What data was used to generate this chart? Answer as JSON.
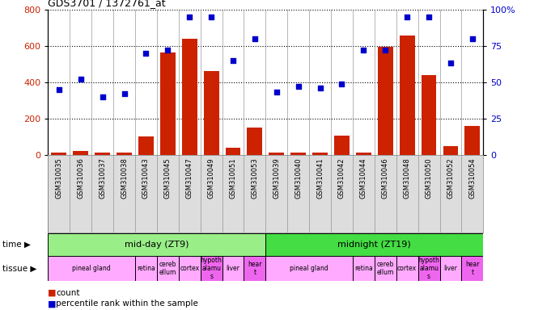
{
  "title": "GDS3701 / 1372761_at",
  "samples": [
    "GSM310035",
    "GSM310036",
    "GSM310037",
    "GSM310038",
    "GSM310043",
    "GSM310045",
    "GSM310047",
    "GSM310049",
    "GSM310051",
    "GSM310053",
    "GSM310039",
    "GSM310040",
    "GSM310041",
    "GSM310042",
    "GSM310044",
    "GSM310046",
    "GSM310048",
    "GSM310050",
    "GSM310052",
    "GSM310054"
  ],
  "counts": [
    15,
    20,
    12,
    14,
    100,
    565,
    640,
    460,
    40,
    150,
    12,
    14,
    14,
    108,
    12,
    595,
    655,
    440,
    50,
    160
  ],
  "percentiles": [
    45,
    52,
    40,
    42,
    70,
    72,
    95,
    95,
    65,
    80,
    43,
    47,
    46,
    49,
    72,
    72,
    95,
    95,
    63,
    80
  ],
  "ylim_left": [
    0,
    800
  ],
  "ylim_right": [
    0,
    100
  ],
  "yticks_left": [
    0,
    200,
    400,
    600,
    800
  ],
  "yticks_right": [
    0,
    25,
    50,
    75,
    100
  ],
  "bar_color": "#cc2200",
  "dot_color": "#0000cc",
  "time_color_midday": "#99ee88",
  "time_color_midnight": "#44dd44",
  "time_labels": [
    "mid-day (ZT9)",
    "midnight (ZT19)"
  ],
  "time_ranges": [
    [
      0,
      10
    ],
    [
      10,
      20
    ]
  ],
  "tissue_color_light": "#ffaaff",
  "tissue_color_dark": "#ee66ee",
  "tissue_segments": [
    {
      "label": "pineal gland",
      "start": 0,
      "end": 4,
      "dark": false
    },
    {
      "label": "retina",
      "start": 4,
      "end": 5,
      "dark": false
    },
    {
      "label": "cereb\nellum",
      "start": 5,
      "end": 6,
      "dark": false
    },
    {
      "label": "cortex",
      "start": 6,
      "end": 7,
      "dark": false
    },
    {
      "label": "hypoth\nalamu\ns",
      "start": 7,
      "end": 8,
      "dark": true
    },
    {
      "label": "liver",
      "start": 8,
      "end": 9,
      "dark": false
    },
    {
      "label": "hear\nt",
      "start": 9,
      "end": 10,
      "dark": true
    },
    {
      "label": "pineal gland",
      "start": 10,
      "end": 14,
      "dark": false
    },
    {
      "label": "retina",
      "start": 14,
      "end": 15,
      "dark": false
    },
    {
      "label": "cereb\nellum",
      "start": 15,
      "end": 16,
      "dark": false
    },
    {
      "label": "cortex",
      "start": 16,
      "end": 17,
      "dark": false
    },
    {
      "label": "hypoth\nalamu\ns",
      "start": 17,
      "end": 18,
      "dark": true
    },
    {
      "label": "liver",
      "start": 18,
      "end": 19,
      "dark": false
    },
    {
      "label": "hear\nt",
      "start": 19,
      "end": 20,
      "dark": true
    }
  ],
  "xtick_bg": "#dddddd",
  "grid_color": "black",
  "chart_bg": "#ffffff"
}
